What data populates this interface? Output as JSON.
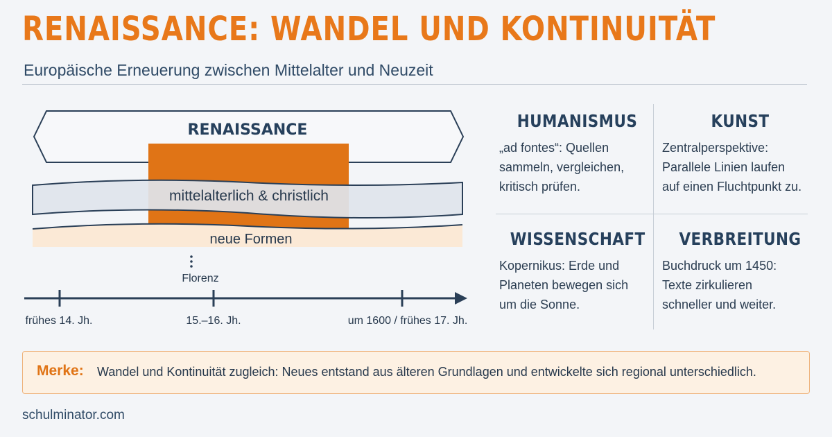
{
  "header": {
    "title": "RENAISSANCE: WANDEL UND KONTINUITÄT",
    "subtitle": "Europäische Erneuerung zwischen Mittelalter und Neuzeit"
  },
  "diagram": {
    "banner_label": "RENAISSANCE",
    "band_medieval": "mittelalterlich & christlich",
    "band_new": "neue Formen",
    "location_marker": "Florenz",
    "timeline": {
      "ticks": [
        "frühes 14. Jh.",
        "15.–16. Jh.",
        "um 1600 / frühes 17. Jh."
      ]
    },
    "colors": {
      "accent": "#e07416",
      "navy": "#2a3f57",
      "medieval_band": "#dfe4ec",
      "new_band": "#fbe9d6"
    }
  },
  "cards": {
    "humanismus": {
      "title": "HUMANISMUS",
      "lines": [
        "„ad fontes“: Quellen",
        "sammeln, vergleichen,",
        "kritisch prüfen."
      ]
    },
    "kunst": {
      "title": "KUNST",
      "lines": [
        "Zentralperspektive:",
        "Parallele Linien laufen",
        "auf einen Fluchtpunkt zu."
      ]
    },
    "wissenschaft": {
      "title": "WISSENSCHAFT",
      "lines": [
        "Kopernikus: Erde und",
        "Planeten bewegen sich",
        "um die Sonne."
      ]
    },
    "verbreitung": {
      "title": "VERBREITUNG",
      "lines": [
        "Buchdruck um 1450:",
        "Texte zirkulieren",
        "schneller und weiter."
      ]
    }
  },
  "note": {
    "label": "Merke:",
    "text": "Wandel und Kontinuität zugleich: Neues entstand aus älteren Grundlagen und  entwickelte sich regional unterschiedlich."
  },
  "footer": {
    "text": "schulminator.com"
  }
}
